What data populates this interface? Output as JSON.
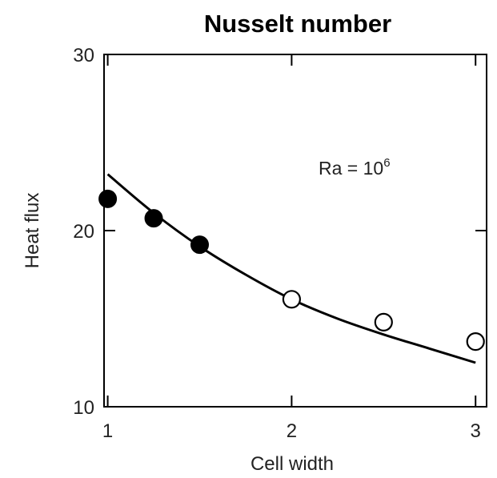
{
  "chart_data": {
    "type": "scatter",
    "title": "Nusselt number",
    "xlabel": "Cell width",
    "ylabel": "Heat flux",
    "xlim": [
      0.98,
      3.06
    ],
    "ylim": [
      10,
      30
    ],
    "x_ticks": [
      1,
      2,
      3
    ],
    "y_ticks": [
      10,
      20,
      30
    ],
    "grid": false,
    "annotation": {
      "base": "Ra = 10",
      "exponent": "6"
    },
    "series": [
      {
        "marker": "filled-circle",
        "x": [
          1.0,
          1.25,
          1.5
        ],
        "y": [
          21.8,
          20.7,
          19.2
        ]
      },
      {
        "marker": "open-circle",
        "x": [
          2.0,
          2.5,
          3.0
        ],
        "y": [
          16.1,
          14.8,
          13.7
        ]
      },
      {
        "marker": "line",
        "x": [
          1.0,
          1.25,
          1.5,
          1.75,
          2.0,
          2.25,
          2.5,
          2.75,
          3.0
        ],
        "y": [
          23.2,
          21.0,
          19.1,
          17.5,
          16.1,
          15.0,
          14.1,
          13.3,
          12.5
        ]
      }
    ]
  }
}
